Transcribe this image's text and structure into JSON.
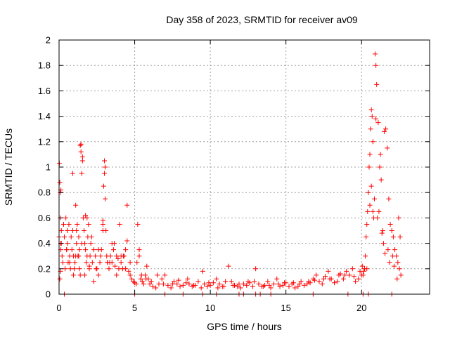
{
  "chart_data": {
    "type": "scatter",
    "title": "Day 358 of 2023, SRMTID for receiver av09",
    "xlabel": "GPS time / hours",
    "ylabel": "SRMTID / TECUs",
    "xlim": [
      0,
      24.5
    ],
    "ylim": [
      0,
      2
    ],
    "xticks": [
      0,
      5,
      10,
      15,
      20
    ],
    "xtick_labels": [
      "0",
      "5",
      "10",
      "15",
      "20"
    ],
    "yticks": [
      0,
      0.2,
      0.4,
      0.6,
      0.8,
      1,
      1.2,
      1.4,
      1.6,
      1.8,
      2
    ],
    "ytick_labels": [
      "0",
      "0.2",
      "0.4",
      "0.6",
      "0.8",
      "1",
      "1.2",
      "1.4",
      "1.6",
      "1.8",
      "2"
    ],
    "grid": true,
    "marker": "+",
    "color": "#ff0000",
    "series": [
      {
        "name": "SRMTID",
        "x": [
          0.0,
          0.02,
          0.05,
          0.08,
          0.1,
          0.12,
          0.15,
          0.2,
          0.25,
          0.3,
          0.35,
          0.4,
          0.45,
          0.5,
          0.55,
          0.6,
          0.65,
          0.7,
          0.75,
          0.8,
          0.85,
          0.9,
          0.95,
          1.0,
          1.05,
          1.1,
          1.15,
          1.2,
          1.25,
          1.3,
          1.35,
          1.4,
          1.45,
          1.5,
          1.55,
          1.6,
          1.65,
          1.7,
          1.75,
          1.8,
          1.85,
          1.9,
          1.95,
          2.0,
          2.05,
          2.1,
          2.2,
          2.3,
          2.4,
          2.5,
          2.6,
          2.7,
          2.8,
          2.9,
          2.95,
          3.0,
          3.05,
          3.1,
          3.15,
          3.2,
          3.3,
          3.4,
          3.5,
          3.6,
          3.7,
          3.8,
          3.9,
          4.0,
          4.1,
          4.2,
          4.3,
          4.4,
          4.5,
          4.6,
          4.7,
          4.8,
          4.9,
          5.0,
          5.1,
          5.2,
          5.3,
          5.4,
          5.5,
          5.6,
          5.7,
          5.8,
          5.9,
          6.0,
          6.2,
          6.4,
          6.6,
          6.8,
          7.0,
          7.2,
          7.4,
          7.6,
          7.8,
          8.0,
          8.2,
          8.4,
          8.6,
          8.8,
          9.0,
          9.2,
          9.4,
          9.6,
          9.8,
          10.0,
          10.2,
          10.4,
          10.6,
          10.8,
          11.0,
          11.2,
          11.4,
          11.6,
          11.8,
          12.0,
          12.2,
          12.4,
          12.6,
          12.8,
          13.0,
          13.2,
          13.4,
          13.6,
          13.8,
          14.0,
          14.2,
          14.4,
          14.6,
          14.8,
          15.0,
          15.2,
          15.4,
          15.6,
          15.8,
          16.0,
          16.2,
          16.4,
          16.6,
          16.8,
          17.0,
          17.2,
          17.4,
          17.6,
          17.8,
          18.0,
          18.2,
          18.4,
          18.6,
          18.8,
          19.0,
          19.2,
          19.4,
          19.6,
          19.8,
          20.0,
          20.05,
          20.1,
          20.15,
          20.2,
          20.25,
          20.3,
          20.35,
          20.4,
          20.45,
          20.5,
          20.55,
          20.6,
          20.65,
          20.7,
          20.75,
          20.8,
          20.85,
          20.9,
          20.95,
          21.0,
          21.1,
          21.2,
          21.3,
          21.4,
          21.5,
          21.6,
          21.7,
          21.8,
          21.9,
          22.0,
          22.1,
          22.2,
          22.3,
          22.4,
          22.5,
          22.6,
          0.05,
          0.1,
          0.15,
          0.3,
          0.5,
          0.7,
          0.9,
          1.1,
          1.3,
          1.5,
          1.7,
          2.0,
          2.3,
          2.6,
          2.9,
          3.2,
          3.5,
          3.8,
          4.1,
          4.4,
          4.7,
          5.3,
          6.5,
          7.5,
          8.5,
          9.5,
          10.5,
          11.5,
          12.5,
          13.5,
          14.5,
          15.5,
          16.5,
          17.5,
          18.5,
          19.5,
          20.35,
          20.65,
          20.75,
          21.05,
          21.25,
          21.45,
          21.75,
          22.05,
          22.35,
          22.55,
          1.4,
          1.45,
          1.55,
          1.75,
          2.9,
          3.0,
          3.05,
          0.08,
          0.12,
          4.5,
          5.0,
          7.0,
          8.2,
          9.5,
          10.4,
          11.9,
          12.2,
          13.0,
          13.3,
          14.0,
          16.8,
          19.1,
          20.1,
          20.45,
          22.0,
          0.35,
          0.55,
          0.95,
          1.15,
          1.35,
          1.85,
          2.15,
          2.45,
          2.75,
          3.35,
          3.65,
          3.95,
          4.25,
          5.15,
          5.45,
          5.75,
          6.1,
          6.9,
          7.9,
          8.9,
          9.9,
          10.9,
          11.9,
          12.9,
          13.9,
          14.9,
          15.9,
          16.9,
          17.9,
          18.9,
          19.9,
          20.55,
          20.95,
          21.15,
          21.35,
          21.55,
          21.85,
          22.15,
          22.45
        ],
        "y": [
          0.45,
          1.03,
          0.88,
          0.6,
          0.4,
          0.35,
          0.5,
          0.3,
          0.25,
          0.55,
          0.45,
          0.2,
          0.6,
          0.35,
          0.5,
          0.25,
          0.55,
          0.3,
          0.2,
          0.45,
          0.35,
          0.5,
          0.15,
          0.2,
          0.25,
          0.3,
          0.4,
          0.55,
          0.3,
          0.45,
          0.2,
          1.17,
          1.12,
          0.95,
          1.05,
          0.6,
          0.5,
          0.4,
          0.35,
          0.25,
          0.3,
          0.45,
          0.55,
          0.2,
          0.3,
          0.4,
          0.25,
          0.35,
          0.3,
          0.2,
          0.15,
          0.25,
          0.35,
          0.55,
          0.85,
          1.05,
          0.75,
          0.5,
          0.3,
          0.25,
          0.2,
          0.3,
          0.25,
          0.35,
          0.22,
          0.3,
          0.28,
          0.55,
          0.25,
          0.2,
          0.3,
          0.35,
          0.42,
          0.18,
          0.15,
          0.12,
          0.1,
          0.09,
          0.08,
          0.55,
          0.35,
          0.12,
          0.1,
          0.08,
          0.15,
          0.22,
          0.12,
          0.08,
          0.06,
          0.05,
          0.08,
          0.12,
          0.15,
          0.07,
          0.05,
          0.1,
          0.08,
          0.06,
          0.07,
          0.09,
          0.08,
          0.06,
          0.07,
          0.1,
          0.05,
          0.08,
          0.06,
          0.07,
          0.09,
          0.12,
          0.08,
          0.06,
          0.1,
          0.22,
          0.1,
          0.07,
          0.06,
          0.05,
          0.08,
          0.07,
          0.09,
          0.06,
          0.2,
          0.08,
          0.06,
          0.07,
          0.1,
          0.05,
          0.08,
          0.12,
          0.06,
          0.07,
          0.09,
          0.06,
          0.08,
          0.05,
          0.06,
          0.1,
          0.07,
          0.08,
          0.09,
          0.12,
          0.15,
          0.1,
          0.08,
          0.14,
          0.18,
          0.12,
          0.09,
          0.1,
          0.16,
          0.12,
          0.18,
          0.15,
          0.2,
          0.1,
          0.12,
          0.15,
          0.22,
          0.15,
          0.18,
          0.2,
          0.3,
          0.45,
          0.55,
          0.65,
          0.8,
          1.0,
          1.1,
          1.3,
          1.45,
          1.4,
          1.2,
          0.6,
          0.75,
          1.89,
          1.8,
          1.65,
          1.35,
          1.0,
          0.9,
          0.5,
          1.28,
          1.3,
          1.15,
          0.75,
          0.55,
          0.5,
          0.45,
          0.35,
          0.3,
          0.25,
          0.2,
          0.15,
          0.12,
          0.18,
          0.4,
          0.55,
          0.35,
          0.25,
          0.95,
          0.7,
          0.3,
          0.4,
          0.15,
          0.22,
          0.1,
          0.35,
          0.5,
          0.25,
          0.4,
          0.15,
          0.3,
          0.2,
          0.25,
          0.3,
          0.15,
          0.08,
          0.12,
          0.18,
          0.05,
          0.07,
          0.1,
          0.06,
          0.08,
          0.09,
          0.1,
          0.12,
          0.15,
          0.14,
          0.2,
          0.85,
          0.65,
          0.6,
          1.1,
          0.4,
          0.35,
          0.3,
          0.12,
          0.45,
          0.15,
          1.18,
          1.08,
          0.62,
          0.58,
          0.95,
          1.0,
          0.8,
          0.82,
          0.7,
          0.0,
          0.0,
          0.0,
          0.0,
          0.0,
          0.0,
          0.0,
          0.0,
          0.0,
          0.0,
          0.0,
          0.0,
          0.0,
          0.0,
          0.0,
          0.0,
          0.4,
          0.3,
          0.5,
          0.35,
          0.6,
          0.45,
          0.2,
          0.3,
          0.25,
          0.4,
          0.2,
          0.3,
          0.25,
          0.15,
          0.12,
          0.1,
          0.08,
          0.11,
          0.07,
          0.09,
          0.06,
          0.08,
          0.1,
          0.07,
          0.09,
          0.08,
          0.11,
          0.12,
          0.15,
          0.18,
          0.7,
          1.38,
          0.65,
          0.48,
          0.32,
          0.25,
          0.22,
          0.6
        ]
      }
    ]
  }
}
